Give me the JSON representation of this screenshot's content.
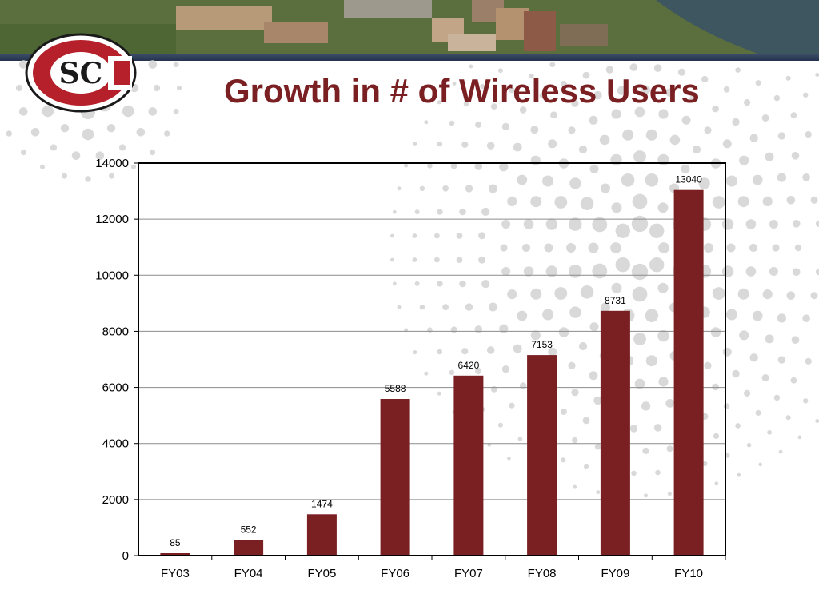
{
  "slide": {
    "title": "Growth in # of Wireless Users",
    "logo_text": "SC"
  },
  "colors": {
    "bar": "#7a1f22",
    "title": "#7a1f22",
    "dots": "#d9d9d9"
  },
  "chart_data": {
    "type": "bar",
    "title": "",
    "xlabel": "",
    "ylabel": "",
    "categories": [
      "FY03",
      "FY04",
      "FY05",
      "FY06",
      "FY07",
      "FY08",
      "FY09",
      "FY10"
    ],
    "values": [
      85,
      552,
      1474,
      5588,
      6420,
      7153,
      8731,
      13040
    ],
    "ylim": [
      0,
      14000
    ],
    "yticks": [
      0,
      2000,
      4000,
      6000,
      8000,
      10000,
      12000,
      14000
    ],
    "grid": true,
    "legend": "none",
    "data_labels": true
  }
}
